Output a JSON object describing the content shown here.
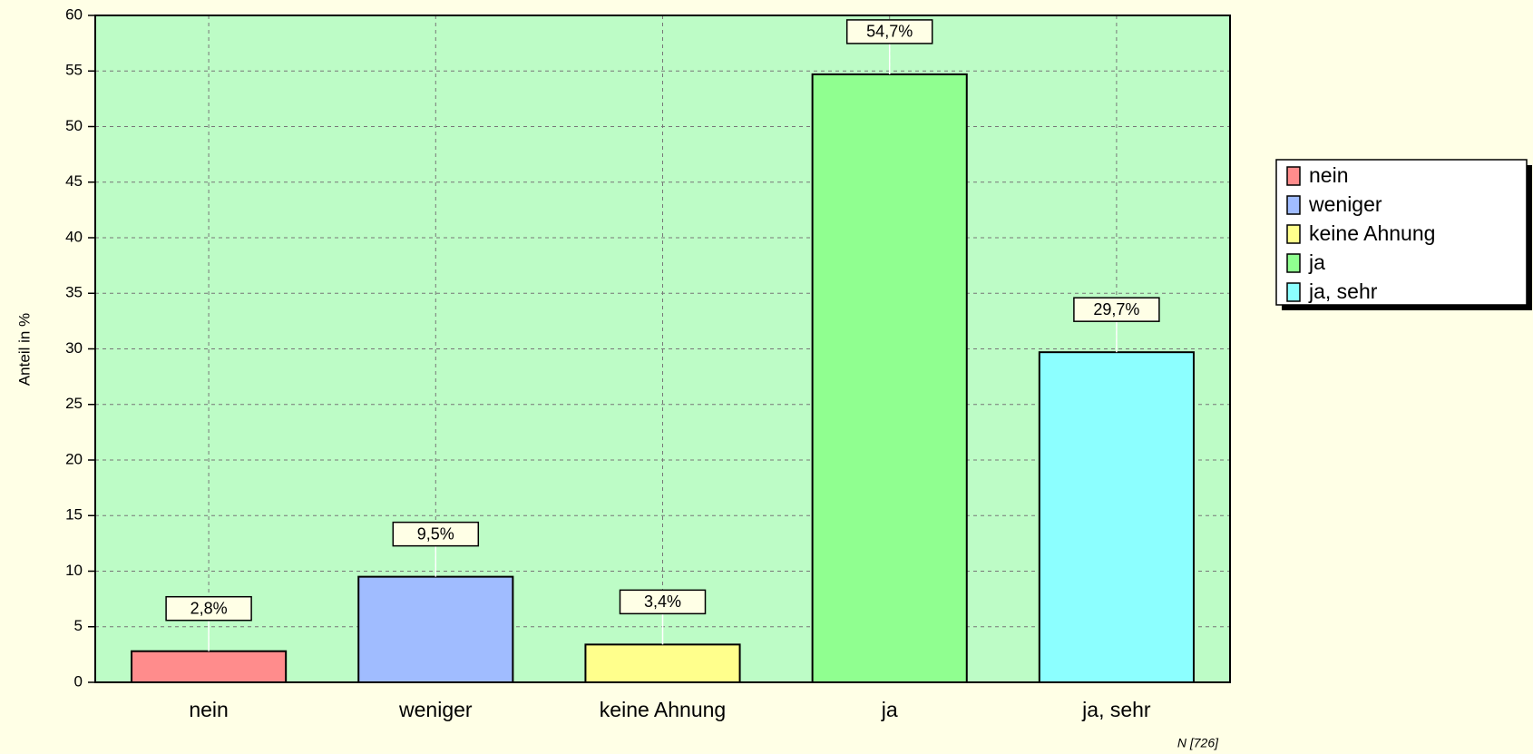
{
  "chart_data": {
    "type": "bar",
    "ylabel": "Anteil in %",
    "note": "N [726]",
    "categories": [
      "nein",
      "weniger",
      "keine Ahnung",
      "ja",
      "ja, sehr"
    ],
    "values": [
      2.8,
      9.5,
      3.4,
      54.7,
      29.7
    ],
    "value_labels": [
      "2,8%",
      "9,5%",
      "3,4%",
      "54,7%",
      "29,7%"
    ],
    "colors": [
      "#ff8c8c",
      "#a0bcff",
      "#ffff8c",
      "#90ff90",
      "#8cffff"
    ],
    "ylim": [
      0,
      60
    ],
    "yticks": [
      0,
      5,
      10,
      15,
      20,
      25,
      30,
      35,
      40,
      45,
      50,
      55,
      60
    ],
    "grid": true,
    "legend": "right"
  }
}
